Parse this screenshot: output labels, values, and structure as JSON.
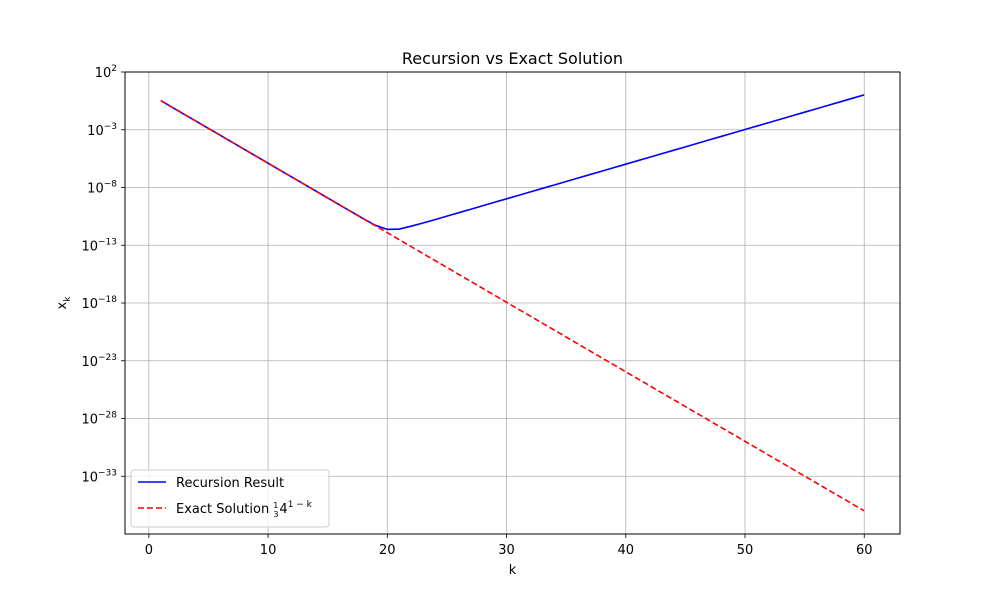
{
  "chart_data": {
    "type": "line",
    "title": "Recursion vs Exact Solution",
    "xlabel": "k",
    "ylabel": "x",
    "ylabel_subscript": "k",
    "xlim": [
      -2,
      63
    ],
    "ylim_exponent": [
      -38,
      2
    ],
    "yscale": "log",
    "x_ticks": [
      0,
      10,
      20,
      30,
      40,
      50,
      60
    ],
    "y_ticks_exponent": [
      2,
      -3,
      -8,
      -13,
      -18,
      -23,
      -28,
      -33
    ],
    "y_tick_base": "10",
    "grid": true,
    "legend_position": "lower-left",
    "series": [
      {
        "name": "Recursion Result",
        "color": "#0000ff",
        "style": "solid",
        "x": [
          1,
          2,
          3,
          4,
          5,
          6,
          7,
          8,
          9,
          10,
          11,
          12,
          13,
          14,
          15,
          16,
          17,
          18,
          19,
          20,
          21,
          22,
          23,
          24,
          25,
          26,
          27,
          28,
          29,
          30,
          31,
          32,
          33,
          34,
          35,
          36,
          37,
          38,
          39,
          40,
          41,
          42,
          43,
          44,
          45,
          46,
          47,
          48,
          49,
          50,
          51,
          52,
          53,
          54,
          55,
          56,
          57,
          58,
          59,
          60
        ],
        "log10_y": [
          -0.477,
          -1.079,
          -1.681,
          -2.283,
          -2.885,
          -3.487,
          -4.089,
          -4.691,
          -5.293,
          -5.895,
          -6.497,
          -7.099,
          -7.701,
          -8.303,
          -8.905,
          -9.507,
          -10.109,
          -10.71,
          -11.27,
          -11.63,
          -11.6,
          -11.35,
          -11.07,
          -10.78,
          -10.48,
          -10.18,
          -9.88,
          -9.58,
          -9.28,
          -8.98,
          -8.68,
          -8.38,
          -8.08,
          -7.78,
          -7.48,
          -7.18,
          -6.88,
          -6.58,
          -6.28,
          -5.98,
          -5.68,
          -5.38,
          -5.08,
          -4.78,
          -4.48,
          -4.18,
          -3.88,
          -3.58,
          -3.28,
          -2.98,
          -2.68,
          -2.38,
          -2.08,
          -1.78,
          -1.48,
          -1.18,
          -0.88,
          -0.58,
          -0.28,
          0.02
        ]
      },
      {
        "name": "Exact Solution",
        "name_math": "1/3 4^(1-k)",
        "color": "#ff0000",
        "style": "dashed",
        "x": [
          1,
          60
        ],
        "log10_y": [
          -0.477,
          -35.996
        ]
      }
    ]
  }
}
